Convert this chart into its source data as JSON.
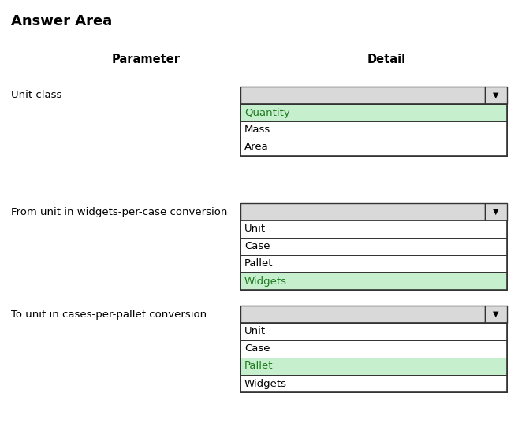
{
  "title": "Answer Area",
  "col_header_param": "Parameter",
  "col_header_detail": "Detail",
  "bg_color": "#ffffff",
  "title_fontsize": 13,
  "header_fontsize": 10.5,
  "body_fontsize": 9.5,
  "rows": [
    {
      "label": "Unit class",
      "dropdown_items": [
        "Quantity",
        "Mass",
        "Area"
      ],
      "highlighted_item": "Quantity"
    },
    {
      "label": "From unit in widgets-per-case conversion",
      "dropdown_items": [
        "Unit",
        "Case",
        "Pallet",
        "Widgets"
      ],
      "highlighted_item": "Widgets"
    },
    {
      "label": "To unit in cases-per-pallet conversion",
      "dropdown_items": [
        "Unit",
        "Case",
        "Pallet",
        "Widgets"
      ],
      "highlighted_item": "Pallet"
    }
  ],
  "dropdown_header_color": "#d9d9d9",
  "dropdown_item_bg": "#ffffff",
  "highlight_color": "#c6efce",
  "border_color": "#333333",
  "text_color": "#000000",
  "highlight_text_color": "#1f7a1f",
  "fig_width": 6.57,
  "fig_height": 5.46,
  "dpi": 100
}
